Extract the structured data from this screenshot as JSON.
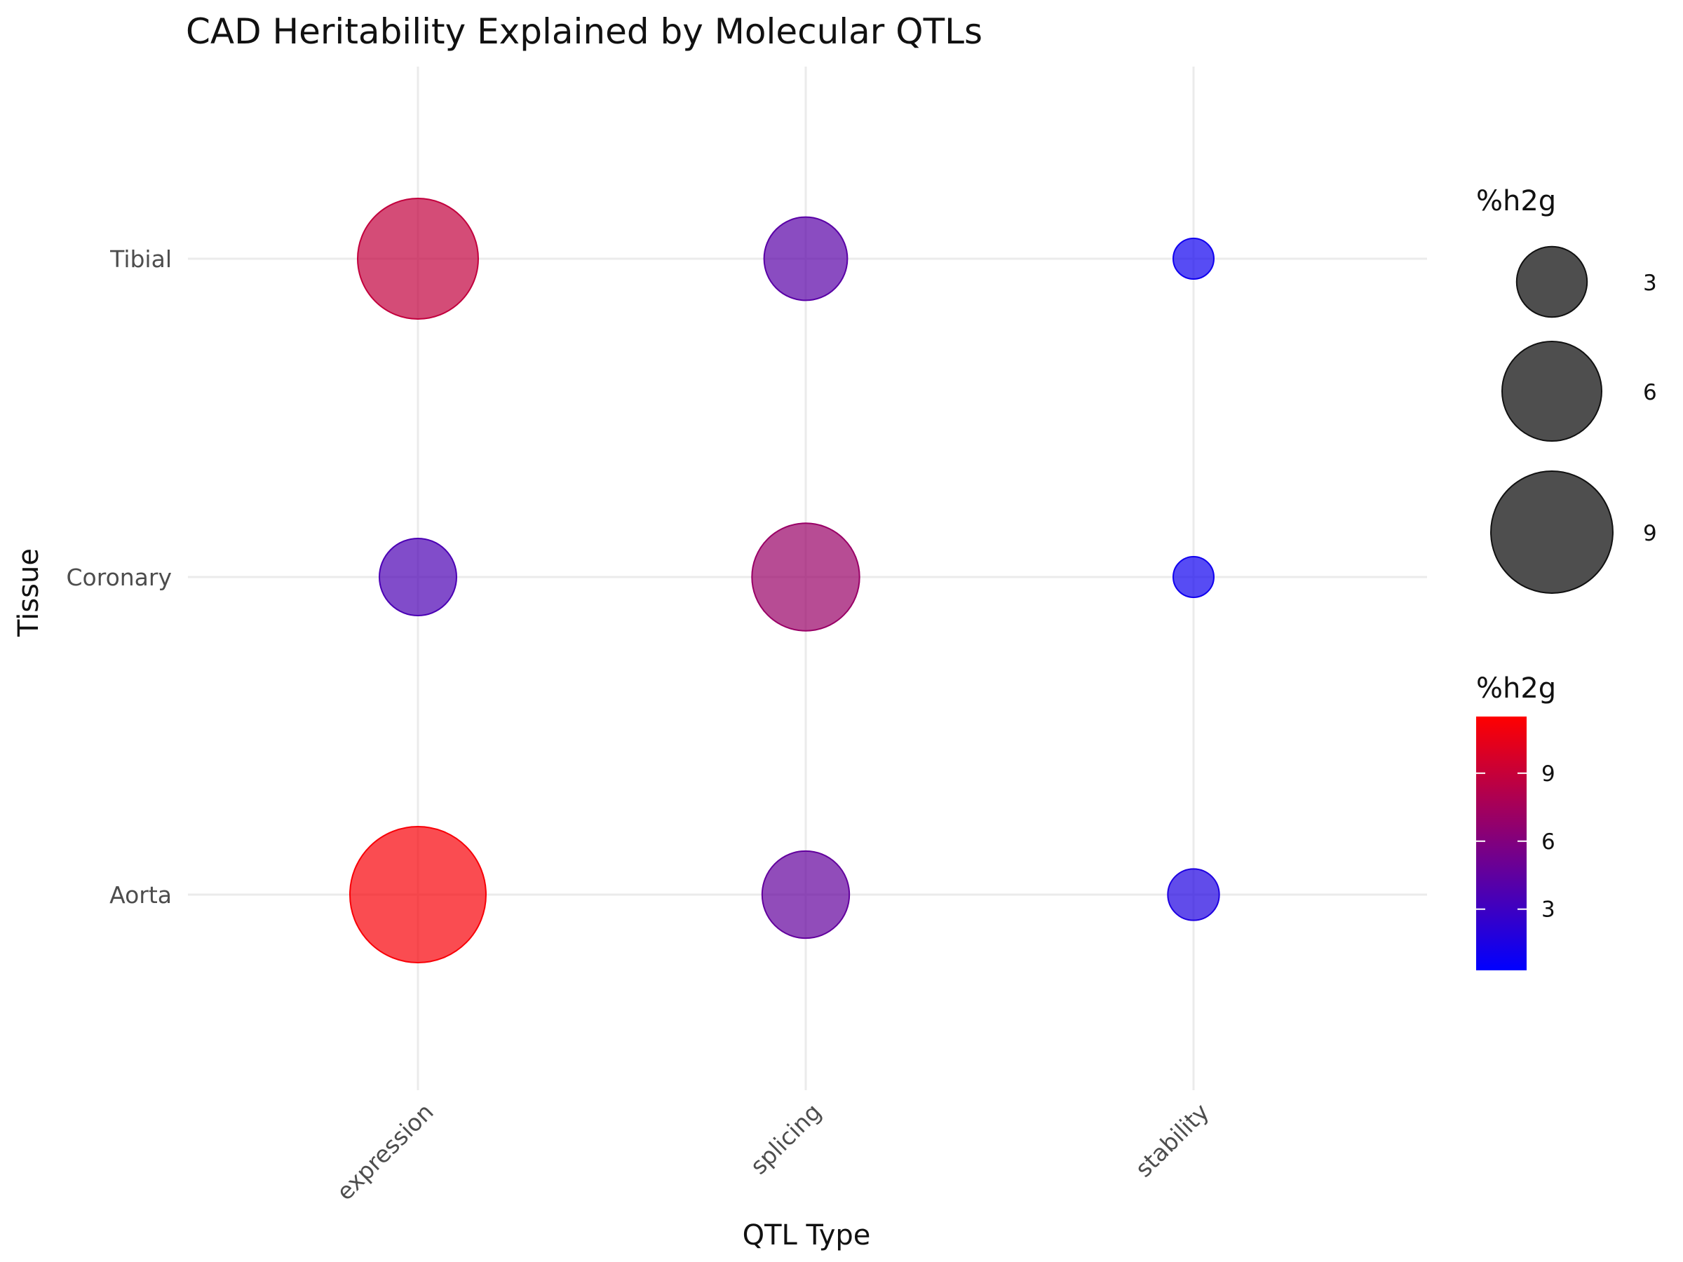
{
  "chart_data": {
    "type": "scatter",
    "title": "CAD Heritability Explained by Molecular QTLs",
    "xlabel": "QTL Type",
    "ylabel": "Tissue",
    "x_categories": [
      "expression",
      "splicing",
      "stability"
    ],
    "y_categories": [
      "Aorta",
      "Coronary",
      "Tibial"
    ],
    "points": [
      {
        "x": "expression",
        "y": "Tibial",
        "value": 8.8
      },
      {
        "x": "splicing",
        "y": "Tibial",
        "value": 4.2
      },
      {
        "x": "stability",
        "y": "Tibial",
        "value": 1.0
      },
      {
        "x": "expression",
        "y": "Coronary",
        "value": 3.6
      },
      {
        "x": "splicing",
        "y": "Coronary",
        "value": 7.0
      },
      {
        "x": "stability",
        "y": "Coronary",
        "value": 1.0
      },
      {
        "x": "expression",
        "y": "Aorta",
        "value": 11.2
      },
      {
        "x": "splicing",
        "y": "Aorta",
        "value": 4.6
      },
      {
        "x": "stability",
        "y": "Aorta",
        "value": 1.6
      }
    ],
    "size_legend": {
      "title": "%h2g",
      "breaks": [
        3,
        6,
        9
      ],
      "labels": [
        "3",
        "6",
        "9"
      ]
    },
    "color_legend": {
      "title": "%h2g",
      "breaks": [
        3,
        6,
        9
      ],
      "labels": [
        "3",
        "6",
        "9"
      ],
      "min": 0.3,
      "max": 11.5,
      "low_color": "#0000ff",
      "high_color": "#ff0000"
    },
    "grid": true,
    "legend_position": "right"
  }
}
